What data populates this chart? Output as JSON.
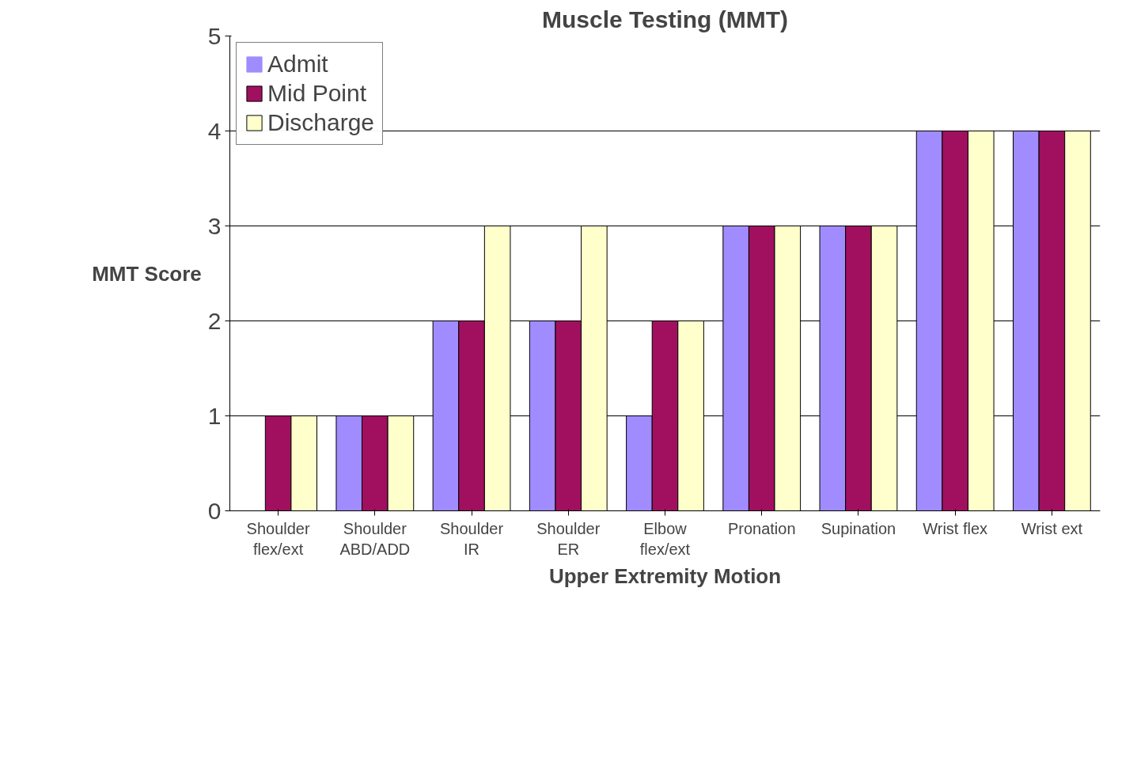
{
  "chart_data": {
    "type": "bar",
    "title": "Muscle Testing (MMT)",
    "xlabel": "Upper Extremity Motion",
    "ylabel": "MMT Score",
    "categories": [
      "Shoulder\nflex/ext",
      "Shoulder\nABD/ADD",
      "Shoulder\nIR",
      "Shoulder\nER",
      "Elbow\nflex/ext",
      "Pronation",
      "Supination",
      "Wrist flex",
      "Wrist ext"
    ],
    "series": [
      {
        "name": "Admit",
        "color": "#a08cff",
        "values": [
          0,
          1,
          2,
          2,
          1,
          3,
          3,
          4,
          4
        ]
      },
      {
        "name": "Mid Point",
        "color": "#a0105f",
        "values": [
          1,
          1,
          2,
          2,
          2,
          3,
          3,
          4,
          4
        ]
      },
      {
        "name": "Discharge",
        "color": "#ffffcc",
        "values": [
          1,
          1,
          3,
          3,
          2,
          3,
          3,
          4,
          4
        ]
      }
    ],
    "ylim": [
      0,
      5
    ],
    "yticks": [
      0,
      1,
      2,
      3,
      4,
      5
    ],
    "grid": "y",
    "legend": "top left"
  }
}
